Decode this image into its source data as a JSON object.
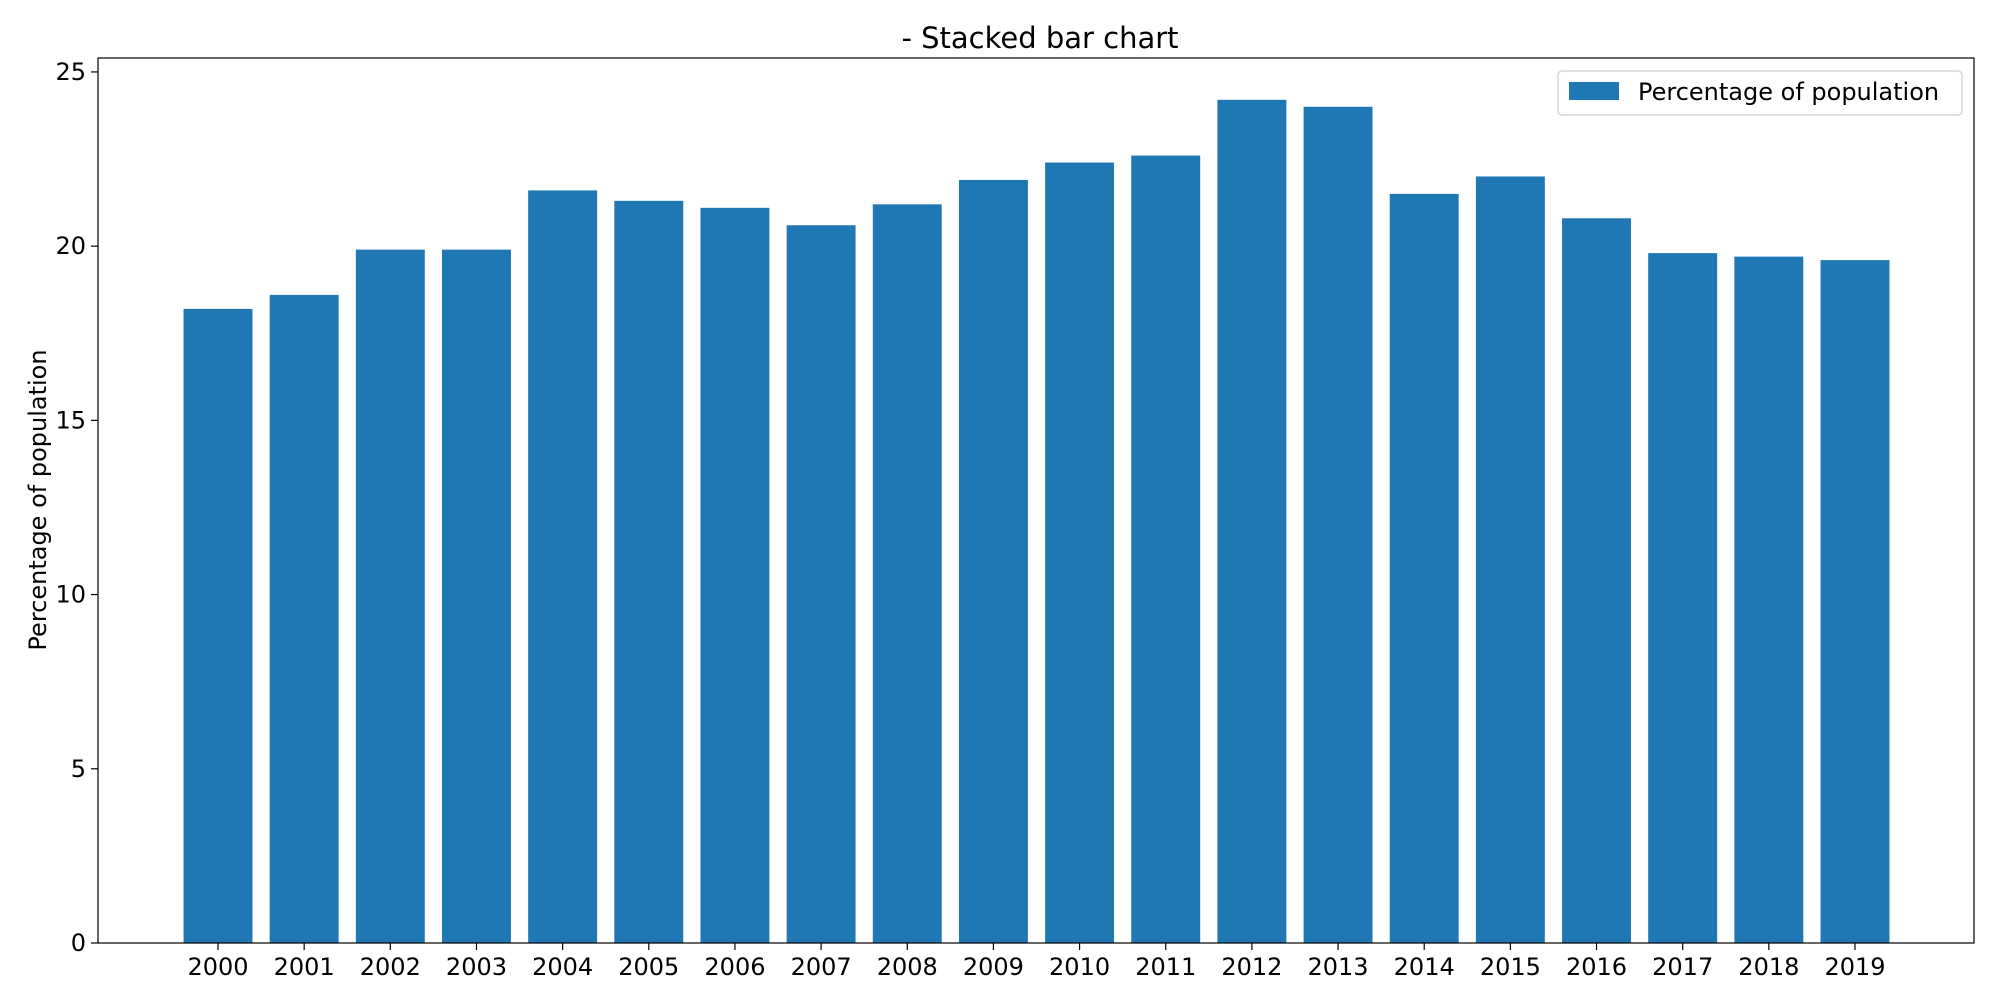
{
  "chart_data": {
    "type": "bar",
    "title": "- Stacked bar chart",
    "xlabel": "",
    "ylabel": "Percentage of population",
    "ylim": [
      0,
      25.4
    ],
    "yticks": [
      0,
      5,
      10,
      15,
      20,
      25
    ],
    "grid": false,
    "legend": {
      "placement": "top-right",
      "entries": [
        "Percentage of population"
      ]
    },
    "categories": [
      "2000",
      "2001",
      "2002",
      "2003",
      "2004",
      "2005",
      "2006",
      "2007",
      "2008",
      "2009",
      "2010",
      "2011",
      "2012",
      "2013",
      "2014",
      "2015",
      "2016",
      "2017",
      "2018",
      "2019"
    ],
    "series": [
      {
        "name": "Percentage of population",
        "color": "#1f77b4",
        "values": [
          18.2,
          18.6,
          19.9,
          19.9,
          21.6,
          21.3,
          21.1,
          20.6,
          21.2,
          21.9,
          22.4,
          22.6,
          24.2,
          24.0,
          21.5,
          22.0,
          20.8,
          19.8,
          19.7,
          19.6
        ]
      }
    ]
  }
}
